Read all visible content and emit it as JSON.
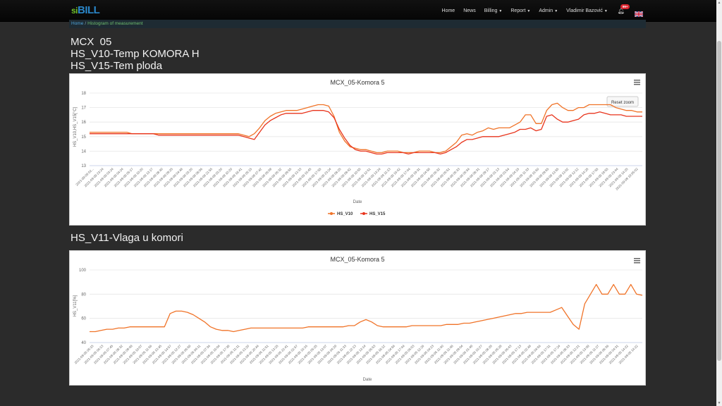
{
  "navbar": {
    "logo_si": "si",
    "logo_bill": "BILL",
    "items": [
      {
        "label": "Home",
        "caret": false
      },
      {
        "label": "News",
        "caret": false
      },
      {
        "label": "Billing",
        "caret": true
      },
      {
        "label": "Report",
        "caret": true
      },
      {
        "label": "Admin",
        "caret": true
      },
      {
        "label": "Vladimir Bazović",
        "caret": true
      }
    ],
    "notification_badge": "99+",
    "language_icon": "uk-flag-icon"
  },
  "breadcrumb": {
    "home": "Home",
    "separator": "/",
    "current": "Histogram of measurement"
  },
  "headings": {
    "device": "MCX  05",
    "sensor1": "HS_V10-Temp KOMORA H",
    "sensor2": "HS_V15-Tem ploda",
    "section2": "HS_V11-Vlaga u komori"
  },
  "colors": {
    "series_a": "#f07328",
    "series_b": "#e8341c",
    "grid": "#e6e6e6"
  },
  "chart1": {
    "reset_zoom_label": "Reset zoom"
  },
  "chart_data": [
    {
      "type": "line",
      "title": "MCX_05-Komora 5",
      "xlabel": "Date",
      "ylabel": "HS_V10,HS_V15[°C]",
      "ylim": [
        13,
        18
      ],
      "yticks": [
        13,
        14,
        15,
        16,
        17,
        18
      ],
      "grid": true,
      "legend": "bottom-center",
      "x_tick_labels": [
        "2021-09-09 02...",
        "2021-09-09 23:24",
        "2021-09-09 03:24",
        "2021-09-09 04:24",
        "2021-09-09 05:17",
        "2021-09-09 10:20",
        "2021-09-09 13:17",
        "2021-09-09 08:40",
        "2021-09-09 09:25",
        "2021-09-09 04:48",
        "2021-09-09 03:20",
        "2021-09-09 08:06",
        "2021-09-09 21:55",
        "2021-09-09 03:20",
        "2021-09-09 10:20",
        "2021-09-09 18:41",
        "2021-09-09 05:15",
        "2021-09-09 07:42",
        "2021-09-09 06:08",
        "2021-09-09 06:32",
        "2021-09-09 09:55",
        "2021-09-09 13:33",
        "2021-09-09 15:45",
        "2021-09-09 17:55",
        "2021-09-09 23:24",
        "2021-09-09 08:25",
        "2021-09-09 08:42",
        "2021-09-09 10:55",
        "2021-09-09 12:51",
        "2021-09-09 13:24",
        "2021-09-09 11:13",
        "2021-09-09 15:42",
        "2021-09-09 17:44",
        "2021-09-09 19:31",
        "2021-09-09 04:58",
        "2021-09-09 06:32",
        "2021-09-09 05:51",
        "2021-09-09 05:33",
        "2021-09-09 05:54",
        "2021-09-09 08:31",
        "2021-09-09 09:17",
        "2021-09-09 01:13",
        "2021-09-09 03:54",
        "2021-09-09 04:15",
        "2021-09-09 11:33",
        "2021-09-09 15:50",
        "2021-09-09 09:55",
        "2021-09-09 13:55",
        "2021-09-09 13:02",
        "2021-09-09 12:12",
        "2021-09-09 14:25",
        "2021-09-09 17:55",
        "2021-09-09 19:55",
        "2021-09-09 23:44",
        "2021-09-09 14:25",
        "2021-09-09 19:65:02"
      ],
      "series": [
        {
          "name": "HS_V10",
          "values": [
            15.3,
            15.3,
            15.3,
            15.3,
            15.3,
            15.3,
            15.3,
            15.3,
            15.2,
            15.2,
            15.2,
            15.2,
            15.2,
            15.2,
            15.2,
            15.2,
            15.2,
            15.2,
            15.2,
            15.2,
            15.2,
            15.2,
            15.2,
            15.2,
            15.2,
            15.2,
            15.2,
            15.2,
            15.2,
            15.1,
            15.0,
            15.2,
            15.6,
            16.1,
            16.4,
            16.6,
            16.7,
            16.8,
            16.8,
            16.8,
            16.9,
            17.0,
            17.1,
            17.2,
            17.2,
            17.1,
            16.4,
            15.3,
            14.7,
            14.3,
            14.2,
            14.1,
            14.1,
            14.0,
            13.9,
            13.9,
            14.0,
            14.0,
            14.0,
            13.9,
            13.9,
            13.9,
            14.0,
            14.0,
            14.0,
            13.9,
            13.9,
            14.0,
            14.3,
            14.6,
            15.1,
            15.2,
            15.1,
            15.3,
            15.4,
            15.6,
            15.5,
            15.6,
            15.6,
            15.6,
            15.8,
            16.0,
            16.5,
            16.5,
            15.9,
            15.9,
            16.8,
            17.2,
            17.3,
            17.0,
            16.8,
            16.8,
            17.0,
            17.0,
            17.2,
            17.2,
            17.2,
            17.2,
            17.2,
            17.0,
            16.9,
            16.8,
            16.8,
            16.7,
            16.7
          ]
        },
        {
          "name": "HS_V15",
          "values": [
            15.2,
            15.2,
            15.2,
            15.2,
            15.2,
            15.2,
            15.2,
            15.2,
            15.2,
            15.2,
            15.2,
            15.2,
            15.2,
            15.1,
            15.1,
            15.1,
            15.1,
            15.1,
            15.1,
            15.1,
            15.1,
            15.1,
            15.1,
            15.1,
            15.1,
            15.1,
            15.1,
            15.1,
            15.1,
            15.0,
            14.9,
            14.8,
            15.3,
            15.8,
            16.1,
            16.3,
            16.5,
            16.6,
            16.6,
            16.6,
            16.6,
            16.7,
            16.8,
            16.8,
            16.8,
            16.7,
            16.3,
            15.5,
            14.9,
            14.4,
            14.1,
            14.0,
            14.0,
            13.9,
            13.8,
            13.8,
            13.9,
            13.9,
            13.9,
            13.9,
            13.8,
            13.9,
            13.9,
            13.9,
            13.9,
            13.9,
            13.8,
            13.9,
            14.1,
            14.3,
            14.6,
            14.8,
            14.8,
            14.9,
            15.0,
            15.0,
            15.0,
            15.0,
            15.1,
            15.2,
            15.3,
            15.5,
            15.5,
            15.6,
            15.4,
            15.5,
            16.4,
            16.5,
            16.2,
            16.0,
            16.0,
            16.1,
            16.2,
            16.5,
            16.6,
            16.6,
            16.7,
            16.6,
            16.5,
            16.5,
            16.5,
            16.4,
            16.4,
            16.4,
            16.4
          ]
        }
      ]
    },
    {
      "type": "line",
      "title": "MCX_05-Komora 5",
      "xlabel": "Date",
      "ylabel": "HS_V11[%]",
      "ylim": [
        40,
        100
      ],
      "yticks": [
        40,
        60,
        80,
        100
      ],
      "grid": true,
      "legend": "none",
      "x_tick_labels": [
        "2021-09-05 05:15",
        "2021-09-05 06:13",
        "2021-09-05 07:45",
        "2021-09-05 08:32",
        "2021-09-05 09:48",
        "2021-09-05 10:07",
        "2021-09-05 11:56",
        "2021-09-05 13:45",
        "2021-09-05 14:57",
        "2021-09-05 12:27",
        "2021-09-05 06:59",
        "2021-09-05 04:11",
        "2021-09-05 07:36",
        "2021-09-05 15:04",
        "2021-09-05 17:38",
        "2021-09-05 11:11",
        "2021-09-05 13:20",
        "2021-09-05 20:44",
        "2021-09-05 11:51",
        "2021-09-05 13:25",
        "2021-09-05 22:41",
        "2021-09-05 02:57",
        "2021-09-05 15:16",
        "2021-09-05 05:25",
        "2021-09-05 13:07",
        "2021-09-05 04:29",
        "2021-09-05 11:33",
        "2021-09-05 22:13",
        "2021-09-05 13:14",
        "2021-09-05 05:53",
        "2021-09-05 18:12",
        "2021-09-05 04:56",
        "2021-09-05 17:44",
        "2021-09-05 05:03",
        "2021-09-05 12:26",
        "2021-09-05 04:23",
        "2021-09-05 11:40",
        "2021-09-05 11:48",
        "2021-09-05 09:04",
        "2021-09-05 01:49",
        "2021-09-05 15:27",
        "2021-09-05 08:28",
        "2021-09-05 05:28",
        "2021-09-05 06:43",
        "2021-09-05 17:13",
        "2021-09-05 02:48",
        "2021-09-05 04:56",
        "2021-09-05 17:31",
        "2021-09-05 17:24",
        "2021-09-05 08:33",
        "2021-09-05 12:21",
        "2021-09-05 13:09",
        "2021-09-05 11:27",
        "2021-09-05 08:36",
        "2021-09-05 04:31",
        "2021-09-05 14:22",
        "2021-09-05 14:22"
      ],
      "series": [
        {
          "name": "HS_V11",
          "values": [
            49,
            49,
            50,
            51,
            51,
            52,
            52,
            53,
            53,
            53,
            53,
            53,
            53,
            53,
            64,
            66,
            66,
            65,
            63,
            60,
            57,
            53,
            51,
            50,
            50,
            49,
            50,
            51,
            52,
            52,
            52,
            52,
            52,
            52,
            52,
            52,
            52,
            52,
            53,
            53,
            53,
            53,
            53,
            53,
            53,
            54,
            54,
            57,
            59,
            57,
            54,
            53,
            53,
            53,
            53,
            53,
            54,
            54,
            54,
            54,
            54,
            54,
            55,
            55,
            55,
            56,
            56,
            57,
            58,
            59,
            60,
            61,
            62,
            63,
            64,
            64,
            65,
            65,
            65,
            65,
            65,
            67,
            69,
            62,
            55,
            51,
            72,
            80,
            88,
            80,
            80,
            88,
            80,
            80,
            88,
            80,
            79
          ]
        }
      ]
    }
  ]
}
